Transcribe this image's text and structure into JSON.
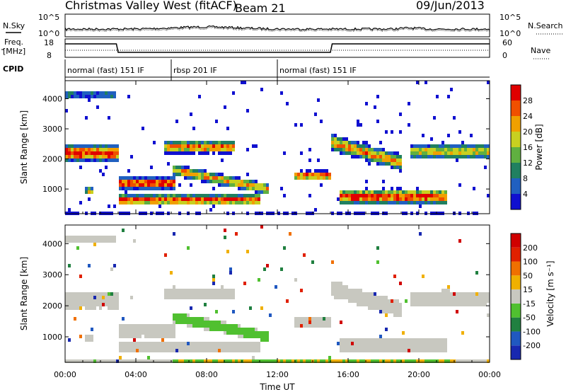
{
  "header": {
    "title": "Christmas Valley West (fitACF)",
    "beam": "Beam 21",
    "date": "09/Jun/2013"
  },
  "strip_labels": {
    "nsky": "N.Sky",
    "nsearch": "N.Search",
    "freq_line1": "Freq.",
    "freq_line2": "[MHz]",
    "nave": "Nave",
    "cpid": "CPID",
    "noise_tick_top": "10^5",
    "noise_tick_bottom": "10^0",
    "noise_tick_top_right": "10^5",
    "noise_tick_bottom_right": "10^0",
    "freq_tick_top": "18",
    "freq_tick_bottom": "8",
    "nave_tick_top": "60",
    "nave_tick_bottom": "0"
  },
  "cpid_segments": [
    {
      "label": "normal (fast) 151 IF",
      "start_hour": 0,
      "end_hour": 6
    },
    {
      "label": "rbsp 201 IF",
      "start_hour": 6,
      "end_hour": 12
    },
    {
      "label": "normal (fast) 151 IF",
      "start_hour": 12,
      "end_hour": 24
    }
  ],
  "chart_data": [
    {
      "type": "heatmap",
      "panel": "power",
      "ylabel": "Slant Range [km]",
      "ylim": [
        180,
        4600
      ],
      "yticks": [
        "1000",
        "2000",
        "3000",
        "4000"
      ],
      "xlim": [
        0,
        24
      ],
      "colorbar": {
        "label": "Power [dB]",
        "ticks": [
          "4",
          "8",
          "12",
          "16",
          "20",
          "24",
          "28"
        ],
        "colors": [
          "#1010d0",
          "#2060c0",
          "#208060",
          "#60b040",
          "#c8d020",
          "#f0a000",
          "#f05000",
          "#e00000"
        ]
      }
    },
    {
      "type": "heatmap",
      "panel": "velocity",
      "ylabel": "Slant Range [km]",
      "ylim": [
        180,
        4600
      ],
      "yticks": [
        "1000",
        "2000",
        "3000",
        "4000"
      ],
      "xlim": [
        0,
        24
      ],
      "xlabel": "Time UT",
      "xticks": [
        "00:00",
        "04:00",
        "08:00",
        "12:00",
        "16:00",
        "20:00",
        "00:00"
      ],
      "colorbar": {
        "label": "Velocity [m s⁻¹]",
        "ticks": [
          "200",
          "100",
          "50",
          "15",
          "-15",
          "-50",
          "-100",
          "-200"
        ],
        "colors": [
          "#1828b0",
          "#2058c0",
          "#208040",
          "#50c030",
          "#c8c8c0",
          "#f0b000",
          "#f07000",
          "#e02000",
          "#d00000"
        ]
      }
    }
  ],
  "colors": {
    "ground_grey": "#c8c8c0",
    "power_low": "#1010d0",
    "power_high": "#e00000"
  }
}
